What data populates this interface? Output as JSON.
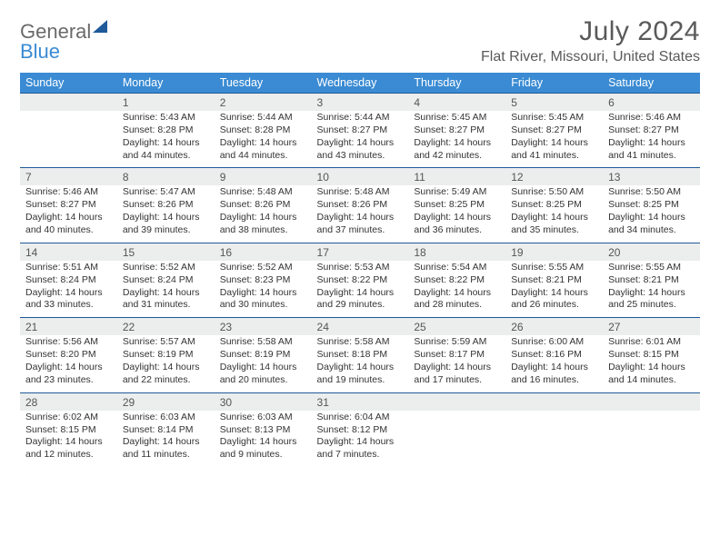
{
  "logo": {
    "text1": "General",
    "text2": "Blue"
  },
  "title": "July 2024",
  "location": "Flat River, Missouri, United States",
  "colors": {
    "header_bg": "#3a8bd3",
    "week_border": "#1f5a9a",
    "daynum_bg": "#eceded",
    "text": "#333333",
    "title_text": "#5a5a5a"
  },
  "day_labels": [
    "Sunday",
    "Monday",
    "Tuesday",
    "Wednesday",
    "Thursday",
    "Friday",
    "Saturday"
  ],
  "weeks": [
    [
      null,
      {
        "n": "1",
        "sunrise": "5:43 AM",
        "sunset": "8:28 PM",
        "dl1": "Daylight: 14 hours",
        "dl2": "and 44 minutes."
      },
      {
        "n": "2",
        "sunrise": "5:44 AM",
        "sunset": "8:28 PM",
        "dl1": "Daylight: 14 hours",
        "dl2": "and 44 minutes."
      },
      {
        "n": "3",
        "sunrise": "5:44 AM",
        "sunset": "8:27 PM",
        "dl1": "Daylight: 14 hours",
        "dl2": "and 43 minutes."
      },
      {
        "n": "4",
        "sunrise": "5:45 AM",
        "sunset": "8:27 PM",
        "dl1": "Daylight: 14 hours",
        "dl2": "and 42 minutes."
      },
      {
        "n": "5",
        "sunrise": "5:45 AM",
        "sunset": "8:27 PM",
        "dl1": "Daylight: 14 hours",
        "dl2": "and 41 minutes."
      },
      {
        "n": "6",
        "sunrise": "5:46 AM",
        "sunset": "8:27 PM",
        "dl1": "Daylight: 14 hours",
        "dl2": "and 41 minutes."
      }
    ],
    [
      {
        "n": "7",
        "sunrise": "5:46 AM",
        "sunset": "8:27 PM",
        "dl1": "Daylight: 14 hours",
        "dl2": "and 40 minutes."
      },
      {
        "n": "8",
        "sunrise": "5:47 AM",
        "sunset": "8:26 PM",
        "dl1": "Daylight: 14 hours",
        "dl2": "and 39 minutes."
      },
      {
        "n": "9",
        "sunrise": "5:48 AM",
        "sunset": "8:26 PM",
        "dl1": "Daylight: 14 hours",
        "dl2": "and 38 minutes."
      },
      {
        "n": "10",
        "sunrise": "5:48 AM",
        "sunset": "8:26 PM",
        "dl1": "Daylight: 14 hours",
        "dl2": "and 37 minutes."
      },
      {
        "n": "11",
        "sunrise": "5:49 AM",
        "sunset": "8:25 PM",
        "dl1": "Daylight: 14 hours",
        "dl2": "and 36 minutes."
      },
      {
        "n": "12",
        "sunrise": "5:50 AM",
        "sunset": "8:25 PM",
        "dl1": "Daylight: 14 hours",
        "dl2": "and 35 minutes."
      },
      {
        "n": "13",
        "sunrise": "5:50 AM",
        "sunset": "8:25 PM",
        "dl1": "Daylight: 14 hours",
        "dl2": "and 34 minutes."
      }
    ],
    [
      {
        "n": "14",
        "sunrise": "5:51 AM",
        "sunset": "8:24 PM",
        "dl1": "Daylight: 14 hours",
        "dl2": "and 33 minutes."
      },
      {
        "n": "15",
        "sunrise": "5:52 AM",
        "sunset": "8:24 PM",
        "dl1": "Daylight: 14 hours",
        "dl2": "and 31 minutes."
      },
      {
        "n": "16",
        "sunrise": "5:52 AM",
        "sunset": "8:23 PM",
        "dl1": "Daylight: 14 hours",
        "dl2": "and 30 minutes."
      },
      {
        "n": "17",
        "sunrise": "5:53 AM",
        "sunset": "8:22 PM",
        "dl1": "Daylight: 14 hours",
        "dl2": "and 29 minutes."
      },
      {
        "n": "18",
        "sunrise": "5:54 AM",
        "sunset": "8:22 PM",
        "dl1": "Daylight: 14 hours",
        "dl2": "and 28 minutes."
      },
      {
        "n": "19",
        "sunrise": "5:55 AM",
        "sunset": "8:21 PM",
        "dl1": "Daylight: 14 hours",
        "dl2": "and 26 minutes."
      },
      {
        "n": "20",
        "sunrise": "5:55 AM",
        "sunset": "8:21 PM",
        "dl1": "Daylight: 14 hours",
        "dl2": "and 25 minutes."
      }
    ],
    [
      {
        "n": "21",
        "sunrise": "5:56 AM",
        "sunset": "8:20 PM",
        "dl1": "Daylight: 14 hours",
        "dl2": "and 23 minutes."
      },
      {
        "n": "22",
        "sunrise": "5:57 AM",
        "sunset": "8:19 PM",
        "dl1": "Daylight: 14 hours",
        "dl2": "and 22 minutes."
      },
      {
        "n": "23",
        "sunrise": "5:58 AM",
        "sunset": "8:19 PM",
        "dl1": "Daylight: 14 hours",
        "dl2": "and 20 minutes."
      },
      {
        "n": "24",
        "sunrise": "5:58 AM",
        "sunset": "8:18 PM",
        "dl1": "Daylight: 14 hours",
        "dl2": "and 19 minutes."
      },
      {
        "n": "25",
        "sunrise": "5:59 AM",
        "sunset": "8:17 PM",
        "dl1": "Daylight: 14 hours",
        "dl2": "and 17 minutes."
      },
      {
        "n": "26",
        "sunrise": "6:00 AM",
        "sunset": "8:16 PM",
        "dl1": "Daylight: 14 hours",
        "dl2": "and 16 minutes."
      },
      {
        "n": "27",
        "sunrise": "6:01 AM",
        "sunset": "8:15 PM",
        "dl1": "Daylight: 14 hours",
        "dl2": "and 14 minutes."
      }
    ],
    [
      {
        "n": "28",
        "sunrise": "6:02 AM",
        "sunset": "8:15 PM",
        "dl1": "Daylight: 14 hours",
        "dl2": "and 12 minutes."
      },
      {
        "n": "29",
        "sunrise": "6:03 AM",
        "sunset": "8:14 PM",
        "dl1": "Daylight: 14 hours",
        "dl2": "and 11 minutes."
      },
      {
        "n": "30",
        "sunrise": "6:03 AM",
        "sunset": "8:13 PM",
        "dl1": "Daylight: 14 hours",
        "dl2": "and 9 minutes."
      },
      {
        "n": "31",
        "sunrise": "6:04 AM",
        "sunset": "8:12 PM",
        "dl1": "Daylight: 14 hours",
        "dl2": "and 7 minutes."
      },
      null,
      null,
      null
    ]
  ]
}
